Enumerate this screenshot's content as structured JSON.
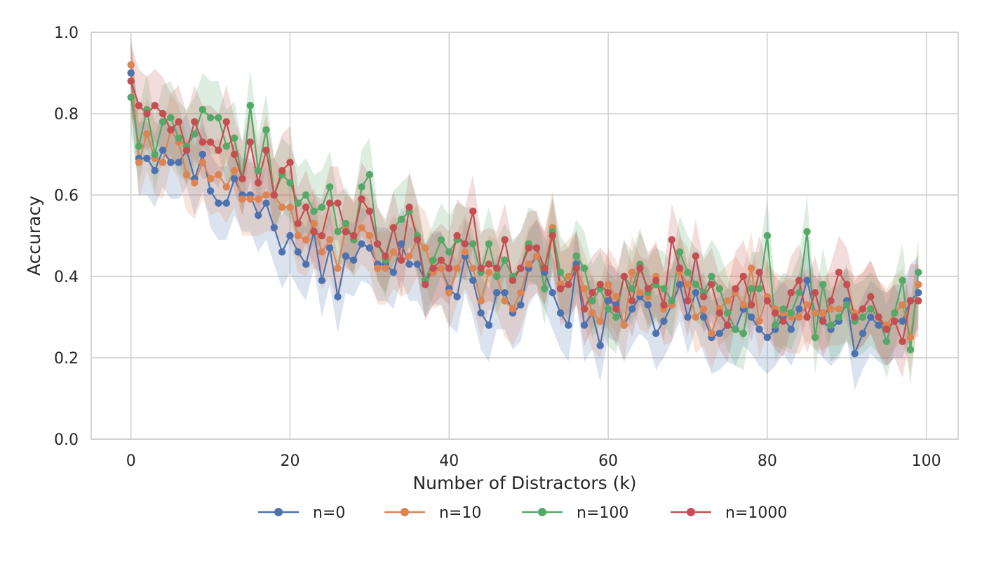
{
  "chart_data": {
    "type": "line",
    "title": "",
    "xlabel": "Number of Distractors (k)",
    "ylabel": "Accuracy",
    "xlim": [
      -5,
      104
    ],
    "ylim": [
      0.0,
      1.0
    ],
    "xticks": [
      "0",
      "20",
      "40",
      "60",
      "80",
      "100"
    ],
    "yticks": [
      "0.0",
      "0.2",
      "0.4",
      "0.6",
      "0.8",
      "1.0"
    ],
    "grid": true,
    "legend_position": "bottom-center",
    "band_width": 0.09,
    "series": [
      {
        "name": "n=0",
        "color": "#4c72b0",
        "values": [
          0.9,
          0.69,
          0.69,
          0.66,
          0.71,
          0.68,
          0.68,
          0.71,
          0.64,
          0.7,
          0.61,
          0.58,
          0.58,
          0.64,
          0.6,
          0.6,
          0.55,
          0.58,
          0.52,
          0.46,
          0.5,
          0.46,
          0.43,
          0.51,
          0.39,
          0.47,
          0.35,
          0.45,
          0.44,
          0.48,
          0.47,
          0.43,
          0.43,
          0.41,
          0.48,
          0.43,
          0.43,
          0.39,
          0.42,
          0.42,
          0.37,
          0.35,
          0.45,
          0.39,
          0.31,
          0.28,
          0.36,
          0.36,
          0.31,
          0.33,
          0.42,
          0.45,
          0.41,
          0.36,
          0.31,
          0.28,
          0.43,
          0.28,
          0.31,
          0.23,
          0.34,
          0.33,
          0.28,
          0.32,
          0.35,
          0.33,
          0.26,
          0.29,
          0.33,
          0.38,
          0.3,
          0.36,
          0.3,
          0.25,
          0.26,
          0.28,
          0.27,
          0.32,
          0.3,
          0.27,
          0.25,
          0.27,
          0.3,
          0.27,
          0.32,
          0.39,
          0.31,
          0.29,
          0.27,
          0.29,
          0.34,
          0.21,
          0.26,
          0.3,
          0.28,
          0.27,
          0.29,
          0.29,
          0.34,
          0.36
        ]
      },
      {
        "name": "n=10",
        "color": "#dd8452",
        "values": [
          0.92,
          0.68,
          0.75,
          0.69,
          0.68,
          0.76,
          0.73,
          0.65,
          0.63,
          0.68,
          0.64,
          0.65,
          0.62,
          0.66,
          0.59,
          0.59,
          0.59,
          0.6,
          0.6,
          0.57,
          0.57,
          0.5,
          0.49,
          0.53,
          0.46,
          0.49,
          0.42,
          0.52,
          0.49,
          0.52,
          0.5,
          0.42,
          0.42,
          0.46,
          0.44,
          0.45,
          0.49,
          0.47,
          0.41,
          0.42,
          0.36,
          0.42,
          0.46,
          0.42,
          0.34,
          0.41,
          0.4,
          0.34,
          0.32,
          0.36,
          0.43,
          0.45,
          0.42,
          0.52,
          0.38,
          0.4,
          0.42,
          0.37,
          0.31,
          0.29,
          0.38,
          0.35,
          0.28,
          0.41,
          0.36,
          0.35,
          0.4,
          0.32,
          0.33,
          0.41,
          0.38,
          0.3,
          0.32,
          0.26,
          0.32,
          0.34,
          0.36,
          0.33,
          0.42,
          0.29,
          0.35,
          0.32,
          0.31,
          0.3,
          0.3,
          0.33,
          0.31,
          0.31,
          0.32,
          0.32,
          0.33,
          0.31,
          0.32,
          0.35,
          0.3,
          0.28,
          0.31,
          0.33,
          0.25,
          0.38
        ]
      },
      {
        "name": "n=100",
        "color": "#55a868",
        "values": [
          0.84,
          0.72,
          0.81,
          0.7,
          0.78,
          0.79,
          0.74,
          0.72,
          0.75,
          0.81,
          0.79,
          0.79,
          0.72,
          0.74,
          0.64,
          0.82,
          0.66,
          0.76,
          0.6,
          0.65,
          0.63,
          0.58,
          0.6,
          0.56,
          0.57,
          0.62,
          0.51,
          0.53,
          0.49,
          0.62,
          0.65,
          0.48,
          0.44,
          0.52,
          0.54,
          0.56,
          0.5,
          0.39,
          0.44,
          0.49,
          0.46,
          0.49,
          0.48,
          0.48,
          0.41,
          0.48,
          0.4,
          0.44,
          0.4,
          0.42,
          0.48,
          0.47,
          0.37,
          0.51,
          0.41,
          0.38,
          0.45,
          0.42,
          0.34,
          0.37,
          0.32,
          0.3,
          0.4,
          0.37,
          0.43,
          0.36,
          0.38,
          0.37,
          0.34,
          0.46,
          0.41,
          0.38,
          0.36,
          0.4,
          0.37,
          0.31,
          0.27,
          0.26,
          0.37,
          0.37,
          0.5,
          0.28,
          0.32,
          0.31,
          0.36,
          0.51,
          0.25,
          0.38,
          0.28,
          0.3,
          0.33,
          0.29,
          0.3,
          0.32,
          0.3,
          0.24,
          0.31,
          0.39,
          0.22,
          0.41
        ]
      },
      {
        "name": "n=1000",
        "color": "#c44e52",
        "values": [
          0.88,
          0.82,
          0.8,
          0.82,
          0.8,
          0.76,
          0.78,
          0.71,
          0.78,
          0.73,
          0.73,
          0.71,
          0.78,
          0.7,
          0.64,
          0.73,
          0.63,
          0.71,
          0.6,
          0.66,
          0.68,
          0.53,
          0.57,
          0.51,
          0.5,
          0.58,
          0.58,
          0.51,
          0.5,
          0.59,
          0.56,
          0.48,
          0.45,
          0.52,
          0.44,
          0.57,
          0.49,
          0.38,
          0.42,
          0.44,
          0.42,
          0.5,
          0.48,
          0.56,
          0.42,
          0.43,
          0.42,
          0.49,
          0.39,
          0.42,
          0.47,
          0.47,
          0.42,
          0.5,
          0.37,
          0.38,
          0.42,
          0.32,
          0.36,
          0.38,
          0.36,
          0.32,
          0.4,
          0.34,
          0.42,
          0.37,
          0.39,
          0.33,
          0.49,
          0.42,
          0.34,
          0.45,
          0.35,
          0.38,
          0.31,
          0.28,
          0.37,
          0.4,
          0.33,
          0.41,
          0.34,
          0.31,
          0.29,
          0.36,
          0.39,
          0.3,
          0.36,
          0.29,
          0.34,
          0.41,
          0.38,
          0.3,
          0.32,
          0.35,
          0.3,
          0.27,
          0.29,
          0.24,
          0.34,
          0.34
        ]
      }
    ]
  }
}
